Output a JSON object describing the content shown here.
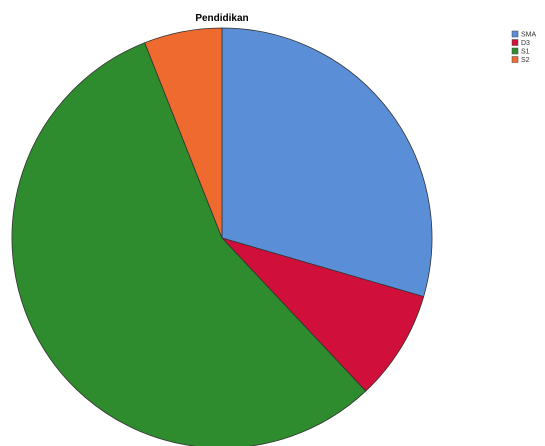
{
  "chart_data": {
    "type": "pie",
    "title": "Pendidikan",
    "start_angle_deg": 90,
    "direction": "clockwise",
    "legend_placement": "top-right",
    "slices": [
      {
        "label": "SMA",
        "value": 29.5,
        "color": "#5a8fd8"
      },
      {
        "label": "D3",
        "value": 8.5,
        "color": "#d0103a"
      },
      {
        "label": "S1",
        "value": 56.0,
        "color": "#2e8b2e"
      },
      {
        "label": "S2",
        "value": 6.0,
        "color": "#ee6a2f"
      }
    ]
  }
}
